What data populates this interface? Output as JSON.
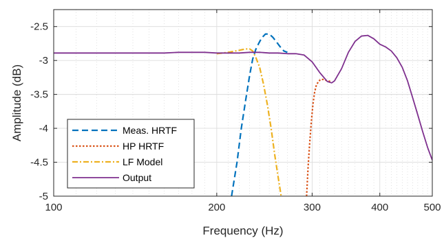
{
  "chart_data": {
    "type": "line",
    "title": "",
    "xlabel": "Frequency (Hz)",
    "ylabel": "Amplitude (dB)",
    "xscale": "log",
    "xlim": [
      100,
      500
    ],
    "ylim": [
      -5,
      -2.25
    ],
    "xticks": [
      100,
      200,
      300,
      400,
      500
    ],
    "xtick_labels": [
      "100",
      "200",
      "300",
      "400",
      "500"
    ],
    "yticks": [
      -5,
      -4.5,
      -4,
      -3.5,
      -3,
      -2.5
    ],
    "ytick_labels": [
      "-5",
      "-4.5",
      "-4",
      "-3.5",
      "-3",
      "-2.5"
    ],
    "grid": true,
    "legend_position": "bottom-left",
    "series": [
      {
        "name": "Meas. HRTF",
        "color": "#0072BD",
        "style": "dashed",
        "x": [
          213,
          218,
          222,
          226,
          230,
          233,
          236,
          239,
          242,
          246,
          250,
          254,
          258,
          262,
          266,
          270
        ],
        "y": [
          -5.0,
          -4.5,
          -4.0,
          -3.6,
          -3.22,
          -2.98,
          -2.84,
          -2.75,
          -2.67,
          -2.61,
          -2.61,
          -2.66,
          -2.73,
          -2.8,
          -2.86,
          -2.88
        ]
      },
      {
        "name": "HP HRTF",
        "color": "#D95319",
        "style": "dotted",
        "x": [
          293,
          295,
          297,
          299,
          301,
          303,
          305,
          308,
          311,
          315,
          320,
          325
        ],
        "y": [
          -5.0,
          -4.55,
          -4.2,
          -3.9,
          -3.65,
          -3.48,
          -3.38,
          -3.31,
          -3.28,
          -3.28,
          -3.3,
          -3.31
        ]
      },
      {
        "name": "LF Model",
        "color": "#EDB120",
        "style": "dashdot",
        "x": [
          200,
          210,
          220,
          226,
          230,
          233,
          236,
          240,
          244,
          248,
          252,
          256,
          260,
          263
        ],
        "y": [
          -2.9,
          -2.88,
          -2.85,
          -2.83,
          -2.83,
          -2.86,
          -2.95,
          -3.1,
          -3.35,
          -3.65,
          -4.0,
          -4.4,
          -4.75,
          -5.0
        ]
      },
      {
        "name": "Output",
        "color": "#7E2F8E",
        "style": "solid",
        "x": [
          100,
          110,
          120,
          130,
          140,
          150,
          160,
          170,
          180,
          185,
          190,
          200,
          210,
          220,
          230,
          240,
          250,
          260,
          270,
          280,
          290,
          300,
          310,
          320,
          326,
          330,
          340,
          350,
          360,
          370,
          380,
          390,
          400,
          410,
          420,
          430,
          440,
          450,
          460,
          470,
          480,
          490,
          500
        ],
        "y": [
          -2.89,
          -2.89,
          -2.89,
          -2.89,
          -2.89,
          -2.89,
          -2.89,
          -2.88,
          -2.88,
          -2.88,
          -2.88,
          -2.89,
          -2.89,
          -2.89,
          -2.88,
          -2.88,
          -2.89,
          -2.89,
          -2.9,
          -2.9,
          -2.92,
          -3.02,
          -3.18,
          -3.31,
          -3.33,
          -3.3,
          -3.12,
          -2.88,
          -2.72,
          -2.64,
          -2.63,
          -2.68,
          -2.76,
          -2.8,
          -2.86,
          -2.96,
          -3.1,
          -3.3,
          -3.55,
          -3.8,
          -4.05,
          -4.28,
          -4.47
        ]
      }
    ]
  }
}
